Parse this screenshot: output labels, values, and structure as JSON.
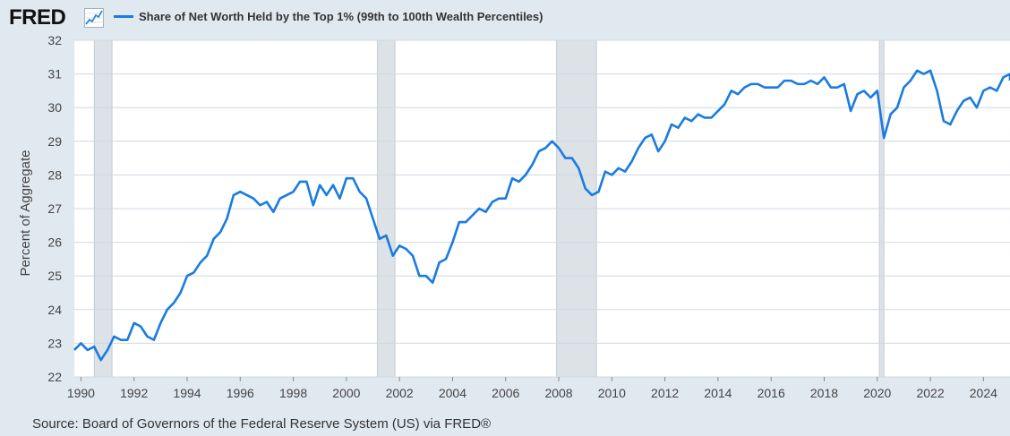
{
  "header": {
    "logo_text": "FRED",
    "logo_icon": "line-chart-icon"
  },
  "colors": {
    "series": "#1a7be0",
    "recession": "#dde2e7",
    "plot_bg": "#ffffff",
    "page_bg": "#e1e9f0",
    "grid": "#cfd8e0"
  },
  "source_text": "Source: Board of Governors of the Federal Reserve System (US) via FRED®",
  "chart_data": {
    "type": "line",
    "title": "",
    "xlabel": "",
    "ylabel": "Percent of Aggregate",
    "xlim": [
      1989.75,
      2025.0
    ],
    "ylim": [
      22,
      32
    ],
    "yticks": [
      22,
      23,
      24,
      25,
      26,
      27,
      28,
      29,
      30,
      31,
      32
    ],
    "xticks": [
      1990,
      1992,
      1994,
      1996,
      1998,
      2000,
      2002,
      2004,
      2006,
      2008,
      2010,
      2012,
      2014,
      2016,
      2018,
      2020,
      2022,
      2024
    ],
    "grid": true,
    "legend": "top-left",
    "recessions": [
      [
        1990.5,
        1991.17
      ],
      [
        2001.17,
        2001.83
      ],
      [
        2007.92,
        2009.42
      ],
      [
        2020.08,
        2020.25
      ]
    ],
    "series": [
      {
        "name": "Share of Net Worth Held by the Top 1% (99th to 100th Wealth Percentiles)",
        "points": [
          [
            1989.75,
            22.8
          ],
          [
            1990.0,
            23.0
          ],
          [
            1990.25,
            22.8
          ],
          [
            1990.5,
            22.9
          ],
          [
            1990.75,
            22.5
          ],
          [
            1991.0,
            22.8
          ],
          [
            1991.25,
            23.2
          ],
          [
            1991.5,
            23.1
          ],
          [
            1991.75,
            23.1
          ],
          [
            1992.0,
            23.6
          ],
          [
            1992.25,
            23.5
          ],
          [
            1992.5,
            23.2
          ],
          [
            1992.75,
            23.1
          ],
          [
            1993.0,
            23.6
          ],
          [
            1993.25,
            24.0
          ],
          [
            1993.5,
            24.2
          ],
          [
            1993.75,
            24.5
          ],
          [
            1994.0,
            25.0
          ],
          [
            1994.25,
            25.1
          ],
          [
            1994.5,
            25.4
          ],
          [
            1994.75,
            25.6
          ],
          [
            1995.0,
            26.1
          ],
          [
            1995.25,
            26.3
          ],
          [
            1995.5,
            26.7
          ],
          [
            1995.75,
            27.4
          ],
          [
            1996.0,
            27.5
          ],
          [
            1996.25,
            27.4
          ],
          [
            1996.5,
            27.3
          ],
          [
            1996.75,
            27.1
          ],
          [
            1997.0,
            27.2
          ],
          [
            1997.25,
            26.9
          ],
          [
            1997.5,
            27.3
          ],
          [
            1997.75,
            27.4
          ],
          [
            1998.0,
            27.5
          ],
          [
            1998.25,
            27.8
          ],
          [
            1998.5,
            27.8
          ],
          [
            1998.75,
            27.1
          ],
          [
            1999.0,
            27.7
          ],
          [
            1999.25,
            27.4
          ],
          [
            1999.5,
            27.7
          ],
          [
            1999.75,
            27.3
          ],
          [
            2000.0,
            27.9
          ],
          [
            2000.25,
            27.9
          ],
          [
            2000.5,
            27.5
          ],
          [
            2000.75,
            27.3
          ],
          [
            2001.0,
            26.7
          ],
          [
            2001.25,
            26.1
          ],
          [
            2001.5,
            26.2
          ],
          [
            2001.75,
            25.6
          ],
          [
            2002.0,
            25.9
          ],
          [
            2002.25,
            25.8
          ],
          [
            2002.5,
            25.6
          ],
          [
            2002.75,
            25.0
          ],
          [
            2003.0,
            25.0
          ],
          [
            2003.25,
            24.8
          ],
          [
            2003.5,
            25.4
          ],
          [
            2003.75,
            25.5
          ],
          [
            2004.0,
            26.0
          ],
          [
            2004.25,
            26.6
          ],
          [
            2004.5,
            26.6
          ],
          [
            2004.75,
            26.8
          ],
          [
            2005.0,
            27.0
          ],
          [
            2005.25,
            26.9
          ],
          [
            2005.5,
            27.2
          ],
          [
            2005.75,
            27.3
          ],
          [
            2006.0,
            27.3
          ],
          [
            2006.25,
            27.9
          ],
          [
            2006.5,
            27.8
          ],
          [
            2006.75,
            28.0
          ],
          [
            2007.0,
            28.3
          ],
          [
            2007.25,
            28.7
          ],
          [
            2007.5,
            28.8
          ],
          [
            2007.75,
            29.0
          ],
          [
            2008.0,
            28.8
          ],
          [
            2008.25,
            28.5
          ],
          [
            2008.5,
            28.5
          ],
          [
            2008.75,
            28.2
          ],
          [
            2009.0,
            27.6
          ],
          [
            2009.25,
            27.4
          ],
          [
            2009.5,
            27.5
          ],
          [
            2009.75,
            28.1
          ],
          [
            2010.0,
            28.0
          ],
          [
            2010.25,
            28.2
          ],
          [
            2010.5,
            28.1
          ],
          [
            2010.75,
            28.4
          ],
          [
            2011.0,
            28.8
          ],
          [
            2011.25,
            29.1
          ],
          [
            2011.5,
            29.2
          ],
          [
            2011.75,
            28.7
          ],
          [
            2012.0,
            29.0
          ],
          [
            2012.25,
            29.5
          ],
          [
            2012.5,
            29.4
          ],
          [
            2012.75,
            29.7
          ],
          [
            2013.0,
            29.6
          ],
          [
            2013.25,
            29.8
          ],
          [
            2013.5,
            29.7
          ],
          [
            2013.75,
            29.7
          ],
          [
            2014.0,
            29.9
          ],
          [
            2014.25,
            30.1
          ],
          [
            2014.5,
            30.5
          ],
          [
            2014.75,
            30.4
          ],
          [
            2015.0,
            30.6
          ],
          [
            2015.25,
            30.7
          ],
          [
            2015.5,
            30.7
          ],
          [
            2015.75,
            30.6
          ],
          [
            2016.0,
            30.6
          ],
          [
            2016.25,
            30.6
          ],
          [
            2016.5,
            30.8
          ],
          [
            2016.75,
            30.8
          ],
          [
            2017.0,
            30.7
          ],
          [
            2017.25,
            30.7
          ],
          [
            2017.5,
            30.8
          ],
          [
            2017.75,
            30.7
          ],
          [
            2018.0,
            30.9
          ],
          [
            2018.25,
            30.6
          ],
          [
            2018.5,
            30.6
          ],
          [
            2018.75,
            30.7
          ],
          [
            2019.0,
            29.9
          ],
          [
            2019.25,
            30.4
          ],
          [
            2019.5,
            30.5
          ],
          [
            2019.75,
            30.3
          ],
          [
            2020.0,
            30.5
          ],
          [
            2020.25,
            29.1
          ],
          [
            2020.5,
            29.8
          ],
          [
            2020.75,
            30.0
          ],
          [
            2021.0,
            30.6
          ],
          [
            2021.25,
            30.8
          ],
          [
            2021.5,
            31.1
          ],
          [
            2021.75,
            31.0
          ],
          [
            2022.0,
            31.1
          ],
          [
            2022.25,
            30.5
          ],
          [
            2022.5,
            29.6
          ],
          [
            2022.75,
            29.5
          ],
          [
            2023.0,
            29.9
          ],
          [
            2023.25,
            30.2
          ],
          [
            2023.5,
            30.3
          ],
          [
            2023.75,
            30.0
          ],
          [
            2024.0,
            30.5
          ],
          [
            2024.25,
            30.6
          ],
          [
            2024.5,
            30.5
          ],
          [
            2024.75,
            30.9
          ],
          [
            2025.0,
            31.0
          ],
          [
            2025.25,
            30.8
          ]
        ]
      }
    ]
  }
}
